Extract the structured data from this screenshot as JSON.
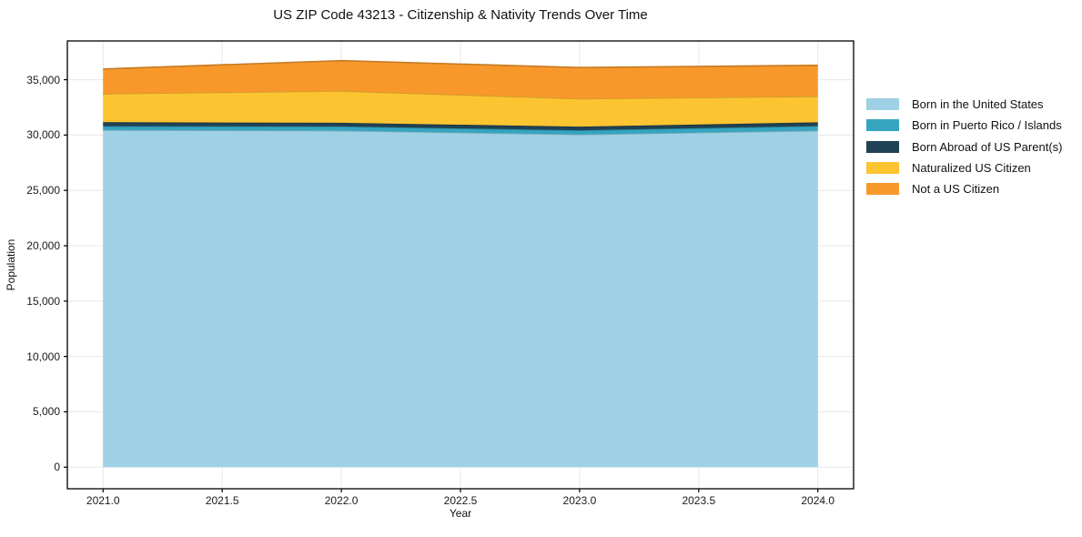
{
  "chart_data": {
    "type": "area",
    "stacked": true,
    "title": "US ZIP Code 43213 - Citizenship & Nativity Trends Over Time",
    "xlabel": "Year",
    "ylabel": "Population",
    "x": [
      2021,
      2022,
      2023,
      2024
    ],
    "series": [
      {
        "name": "Born in the United States",
        "color": "#9FD1E6",
        "values": [
          30450,
          30400,
          30050,
          30400
        ]
      },
      {
        "name": "Born in Puerto Rico / Islands",
        "color": "#35A5C0",
        "values": [
          350,
          380,
          380,
          420
        ]
      },
      {
        "name": "Born Abroad of US Parent(s)",
        "color": "#1F4254",
        "values": [
          360,
          330,
          330,
          330
        ]
      },
      {
        "name": "Naturalized US Citizen",
        "color": "#FDC432",
        "values": [
          2570,
          2870,
          2520,
          2350
        ]
      },
      {
        "name": "Not a US Citizen",
        "color": "#F8982B",
        "values": [
          2240,
          2740,
          2820,
          2800
        ]
      }
    ],
    "totals": [
      35970,
      36720,
      36100,
      36300
    ],
    "x_ticks": [
      2021.0,
      2021.5,
      2022.0,
      2022.5,
      2023.0,
      2023.5,
      2024.0
    ],
    "x_tick_labels": [
      "2021.0",
      "2021.5",
      "2022.0",
      "2022.5",
      "2023.0",
      "2023.5",
      "2024.0"
    ],
    "y_ticks": [
      0,
      5000,
      10000,
      15000,
      20000,
      25000,
      30000,
      35000
    ],
    "y_tick_labels": [
      "0",
      "5,000",
      "10,000",
      "15,000",
      "20,000",
      "25,000",
      "30,000",
      "35,000"
    ],
    "x_range": [
      2020.85,
      2024.15
    ],
    "y_range": [
      -1950,
      38500
    ],
    "grid": true,
    "grid_color": "#e8e8e8",
    "spine_color": "#000000",
    "legend_position": "right"
  }
}
